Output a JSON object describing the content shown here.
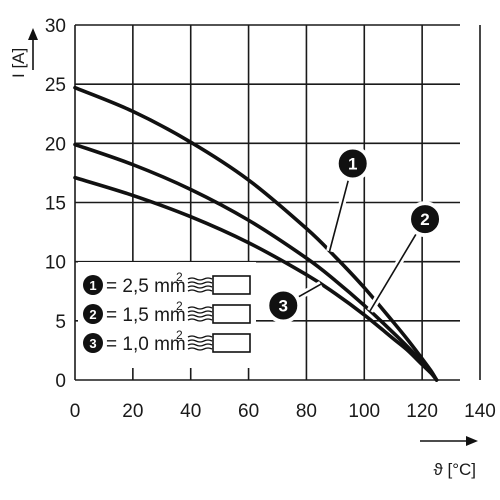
{
  "chart_data": {
    "type": "line",
    "xlabel": "ϑ [°C]",
    "ylabel": "I [A]",
    "xlim": [
      0,
      140
    ],
    "ylim": [
      0,
      30
    ],
    "x_ticks": [
      "0",
      "20",
      "40",
      "60",
      "80",
      "100",
      "120",
      "140"
    ],
    "y_ticks": [
      "0",
      "5",
      "10",
      "15",
      "20",
      "25",
      "30"
    ],
    "grid": true,
    "legend_position": "bottom-left",
    "series": [
      {
        "name": "1",
        "legend": "= 2,5 mm",
        "superscript": "2",
        "x": [
          0,
          20,
          40,
          60,
          80,
          90,
          100,
          110,
          115,
          120,
          123,
          125
        ],
        "y": [
          24.7,
          22.7,
          20.1,
          16.9,
          12.8,
          10.4,
          7.8,
          4.9,
          3.4,
          1.8,
          0.8,
          0
        ]
      },
      {
        "name": "2",
        "legend": "= 1,5 mm",
        "superscript": "2",
        "x": [
          0,
          20,
          40,
          60,
          80,
          90,
          100,
          110,
          115,
          120,
          123,
          125
        ],
        "y": [
          19.9,
          18.2,
          16.1,
          13.5,
          10.3,
          8.4,
          6.3,
          4.0,
          2.8,
          1.5,
          0.7,
          0
        ]
      },
      {
        "name": "3",
        "legend": "= 1,0 mm",
        "superscript": "2",
        "x": [
          0,
          20,
          40,
          60,
          80,
          90,
          100,
          110,
          115,
          120,
          123,
          125
        ],
        "y": [
          17.1,
          15.6,
          13.8,
          11.6,
          8.9,
          7.3,
          5.5,
          3.5,
          2.5,
          1.3,
          0.6,
          0
        ]
      }
    ],
    "callouts": [
      {
        "label": "1",
        "series": 0,
        "at_x": 88,
        "badge_x": 96,
        "badge_y": 18.3
      },
      {
        "label": "2",
        "series": 1,
        "at_x": 102,
        "badge_x": 121,
        "badge_y": 13.6
      },
      {
        "label": "3",
        "series": 2,
        "at_x": 85,
        "badge_x": 72,
        "badge_y": 6.3
      }
    ],
    "colors": {
      "line": "#111111",
      "grid": "#1a1a1a",
      "badge": "#111111",
      "background": "#ffffff"
    }
  }
}
